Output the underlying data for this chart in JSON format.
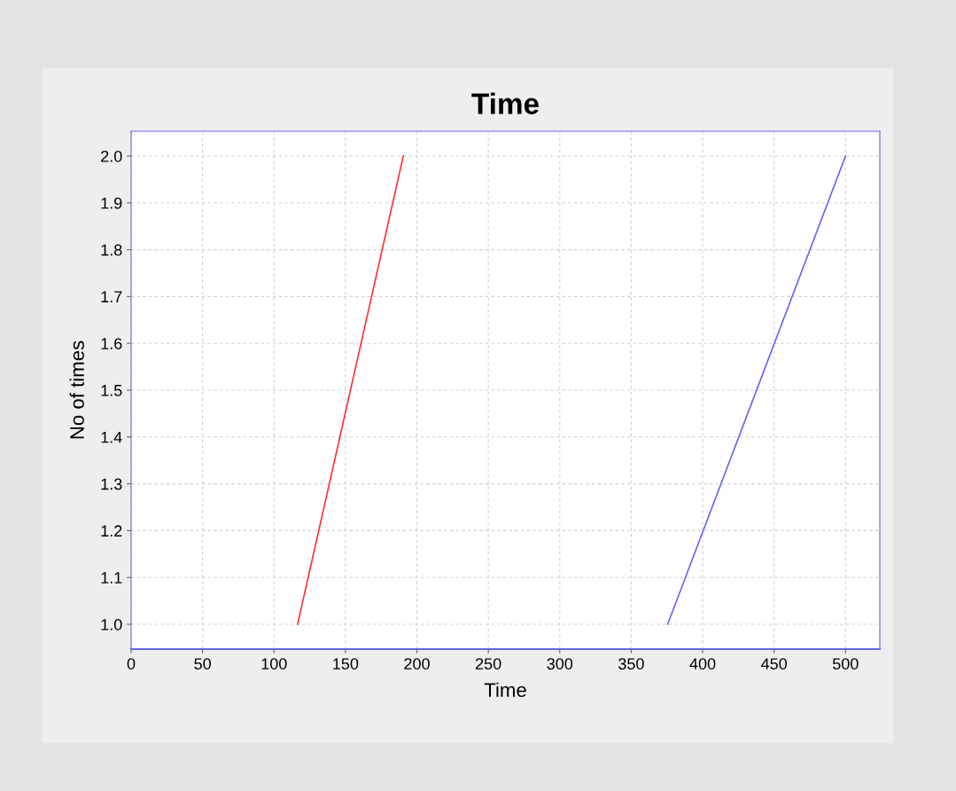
{
  "chart_data": {
    "type": "line",
    "title": "Time",
    "xlabel": "Time",
    "ylabel": "No of times",
    "series": [
      {
        "color": "#ff3333",
        "x": [
          116.5,
          190.5
        ],
        "values": [
          1.0,
          2.0
        ]
      },
      {
        "color": "#6666ee",
        "x": [
          375.5,
          500
        ],
        "values": [
          1.0,
          2.0
        ]
      }
    ],
    "xlim": [
      0,
      524
    ],
    "xticks": [
      0,
      50,
      100,
      150,
      200,
      250,
      300,
      350,
      400,
      450,
      500
    ],
    "ylim": [
      0.947,
      2.053
    ],
    "yticks": [
      {
        "value": 1.0,
        "label": "1.0"
      },
      {
        "value": 1.1,
        "label": "1.1"
      },
      {
        "value": 1.2,
        "label": "1.2"
      },
      {
        "value": 1.3,
        "label": "1.3"
      },
      {
        "value": 1.4,
        "label": "1.4"
      },
      {
        "value": 1.5,
        "label": "1.5"
      },
      {
        "value": 1.6,
        "label": "1.6"
      },
      {
        "value": 1.7,
        "label": "1.7"
      },
      {
        "value": 1.8,
        "label": "1.8"
      },
      {
        "value": 1.9,
        "label": "1.9"
      },
      {
        "value": 2.0,
        "label": "2.0"
      }
    ],
    "grid": true,
    "marker": "none",
    "line_style": "solid"
  }
}
